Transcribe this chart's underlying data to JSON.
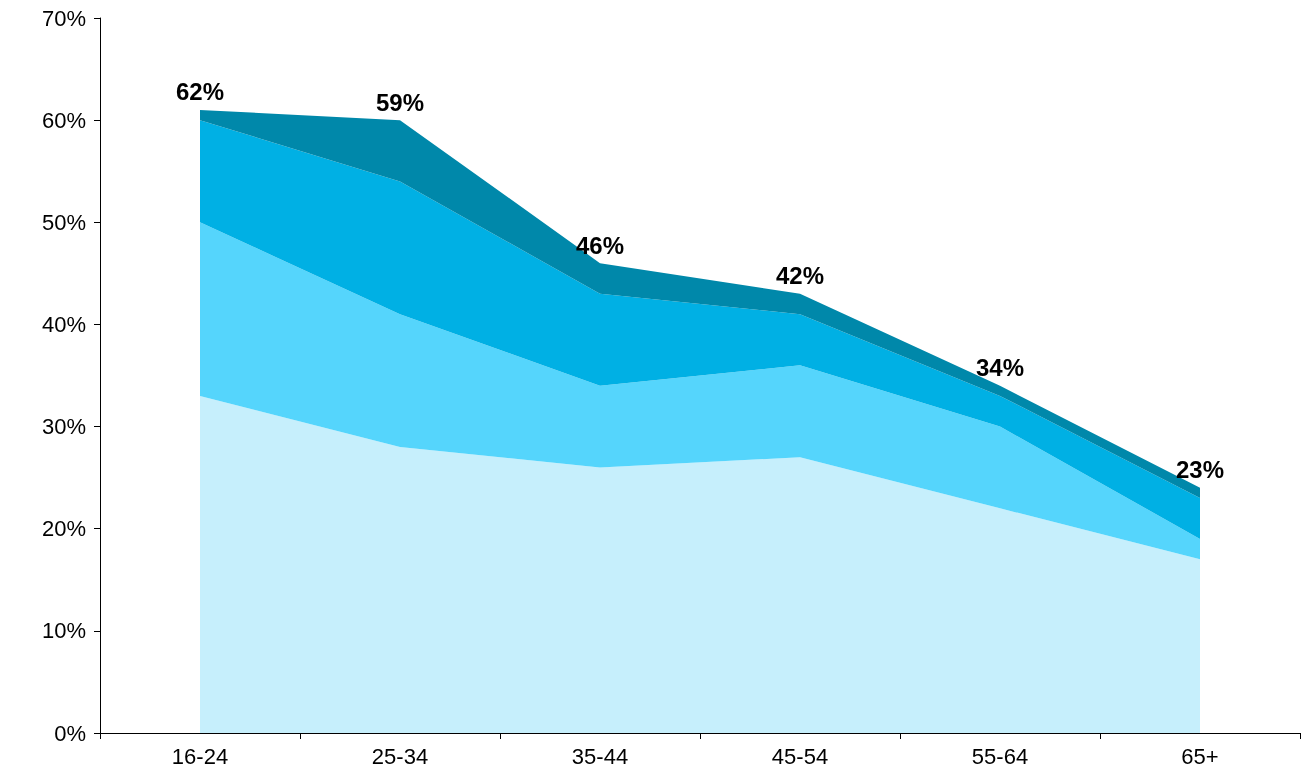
{
  "chart_data": {
    "type": "area",
    "stacked": true,
    "categories": [
      "16-24",
      "25-34",
      "35-44",
      "45-54",
      "55-64",
      "65+"
    ],
    "series": [
      {
        "color": "#c6effc",
        "values": [
          33,
          28,
          26,
          27,
          22,
          17
        ]
      },
      {
        "color": "#55d5fc",
        "values": [
          17,
          13,
          8,
          9,
          8,
          2
        ]
      },
      {
        "color": "#00b0e4",
        "values": [
          10,
          13,
          9,
          5,
          3,
          4
        ]
      },
      {
        "color": "#0088aa",
        "values": [
          1,
          6,
          3,
          2,
          1,
          1
        ]
      }
    ],
    "totals": [
      "62%",
      "59%",
      "46%",
      "42%",
      "34%",
      "23%"
    ],
    "ylim": [
      0,
      70
    ],
    "yticks": [
      {
        "value": 0,
        "label": "0%"
      },
      {
        "value": 10,
        "label": "10%"
      },
      {
        "value": 20,
        "label": "20%"
      },
      {
        "value": 30,
        "label": "30%"
      },
      {
        "value": 40,
        "label": "40%"
      },
      {
        "value": 50,
        "label": "50%"
      },
      {
        "value": 60,
        "label": "60%"
      },
      {
        "value": 70,
        "label": "70%"
      }
    ],
    "grid": false
  }
}
